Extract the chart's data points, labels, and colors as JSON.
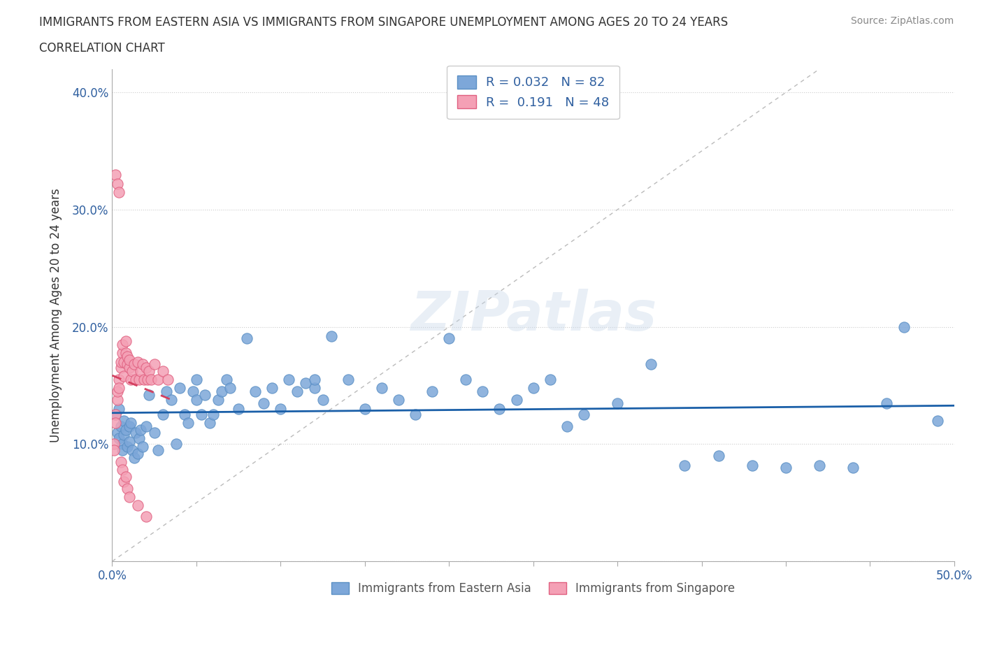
{
  "title_line1": "IMMIGRANTS FROM EASTERN ASIA VS IMMIGRANTS FROM SINGAPORE UNEMPLOYMENT AMONG AGES 20 TO 24 YEARS",
  "title_line2": "CORRELATION CHART",
  "source_text": "Source: ZipAtlas.com",
  "ylabel": "Unemployment Among Ages 20 to 24 years",
  "xlim": [
    0.0,
    0.5
  ],
  "ylim": [
    0.0,
    0.42
  ],
  "xticks": [
    0.0,
    0.05,
    0.1,
    0.15,
    0.2,
    0.25,
    0.3,
    0.35,
    0.4,
    0.45,
    0.5
  ],
  "yticks": [
    0.0,
    0.1,
    0.2,
    0.3,
    0.4
  ],
  "blue_color": "#7da7d9",
  "pink_color": "#f4a0b5",
  "blue_edge": "#5a8fc4",
  "pink_edge": "#e06080",
  "trendline_blue": "#1a5fa8",
  "trendline_pink": "#d44060",
  "R_blue": 0.032,
  "N_blue": 82,
  "R_pink": 0.191,
  "N_pink": 48,
  "watermark": "ZIPatlas",
  "legend_label_blue": "Immigrants from Eastern Asia",
  "legend_label_pink": "Immigrants from Singapore",
  "blue_x": [
    0.002,
    0.003,
    0.004,
    0.004,
    0.005,
    0.006,
    0.006,
    0.007,
    0.007,
    0.008,
    0.009,
    0.01,
    0.01,
    0.011,
    0.012,
    0.013,
    0.014,
    0.015,
    0.016,
    0.017,
    0.018,
    0.02,
    0.022,
    0.025,
    0.027,
    0.03,
    0.032,
    0.035,
    0.038,
    0.04,
    0.043,
    0.045,
    0.048,
    0.05,
    0.053,
    0.055,
    0.058,
    0.06,
    0.063,
    0.065,
    0.068,
    0.07,
    0.075,
    0.08,
    0.085,
    0.09,
    0.095,
    0.1,
    0.105,
    0.11,
    0.115,
    0.12,
    0.125,
    0.13,
    0.14,
    0.15,
    0.16,
    0.17,
    0.18,
    0.19,
    0.2,
    0.21,
    0.22,
    0.23,
    0.24,
    0.25,
    0.26,
    0.27,
    0.28,
    0.3,
    0.32,
    0.34,
    0.36,
    0.38,
    0.4,
    0.42,
    0.44,
    0.46,
    0.47,
    0.49,
    0.05,
    0.12
  ],
  "blue_y": [
    0.125,
    0.11,
    0.13,
    0.105,
    0.115,
    0.1,
    0.095,
    0.12,
    0.108,
    0.112,
    0.098,
    0.115,
    0.102,
    0.118,
    0.095,
    0.088,
    0.11,
    0.092,
    0.105,
    0.112,
    0.098,
    0.115,
    0.142,
    0.11,
    0.095,
    0.125,
    0.145,
    0.138,
    0.1,
    0.148,
    0.125,
    0.118,
    0.145,
    0.138,
    0.125,
    0.142,
    0.118,
    0.125,
    0.138,
    0.145,
    0.155,
    0.148,
    0.13,
    0.19,
    0.145,
    0.135,
    0.148,
    0.13,
    0.155,
    0.145,
    0.152,
    0.148,
    0.138,
    0.192,
    0.155,
    0.13,
    0.148,
    0.138,
    0.125,
    0.145,
    0.19,
    0.155,
    0.145,
    0.13,
    0.138,
    0.148,
    0.155,
    0.115,
    0.125,
    0.135,
    0.168,
    0.082,
    0.09,
    0.082,
    0.08,
    0.082,
    0.08,
    0.135,
    0.2,
    0.12,
    0.155,
    0.155
  ],
  "pink_x": [
    0.001,
    0.001,
    0.002,
    0.002,
    0.003,
    0.003,
    0.004,
    0.004,
    0.005,
    0.005,
    0.006,
    0.006,
    0.007,
    0.007,
    0.008,
    0.008,
    0.009,
    0.009,
    0.01,
    0.01,
    0.011,
    0.012,
    0.013,
    0.014,
    0.015,
    0.016,
    0.017,
    0.018,
    0.019,
    0.02,
    0.021,
    0.022,
    0.023,
    0.025,
    0.027,
    0.03,
    0.033,
    0.002,
    0.003,
    0.004,
    0.005,
    0.006,
    0.007,
    0.008,
    0.009,
    0.01,
    0.015,
    0.02
  ],
  "pink_y": [
    0.1,
    0.095,
    0.125,
    0.118,
    0.138,
    0.145,
    0.155,
    0.148,
    0.165,
    0.17,
    0.178,
    0.185,
    0.158,
    0.17,
    0.178,
    0.188,
    0.168,
    0.175,
    0.165,
    0.172,
    0.155,
    0.162,
    0.168,
    0.155,
    0.17,
    0.155,
    0.162,
    0.168,
    0.155,
    0.165,
    0.155,
    0.162,
    0.155,
    0.168,
    0.155,
    0.162,
    0.155,
    0.33,
    0.322,
    0.315,
    0.085,
    0.078,
    0.068,
    0.072,
    0.062,
    0.055,
    0.048,
    0.038
  ]
}
